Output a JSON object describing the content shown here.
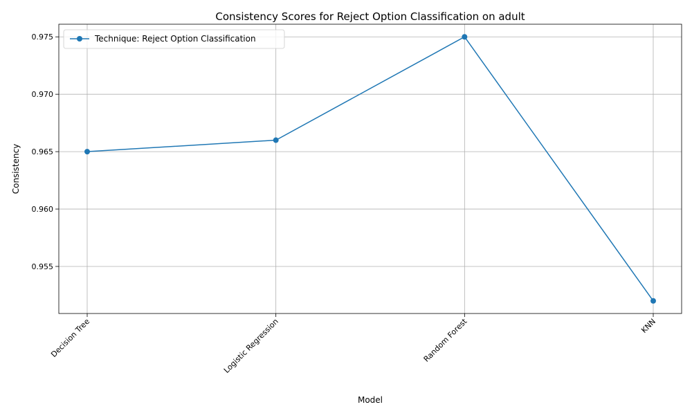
{
  "chart_data": {
    "type": "line",
    "title": "Consistency Scores for Reject Option Classification on adult",
    "xlabel": "Model",
    "ylabel": "Consistency",
    "categories": [
      "Decision Tree",
      "Logistic Regression",
      "Random Forest",
      "KNN"
    ],
    "series": [
      {
        "name": "Technique: Reject Option Classification",
        "values": [
          0.965,
          0.966,
          0.975,
          0.952
        ],
        "color": "#1f77b4",
        "marker": "circle"
      }
    ],
    "yticks": [
      "0.955",
      "0.960",
      "0.965",
      "0.970",
      "0.975"
    ],
    "ylim": [
      0.9509,
      0.9761
    ],
    "grid": true,
    "legend": "top-left",
    "xtick_rotation": "45deg"
  }
}
